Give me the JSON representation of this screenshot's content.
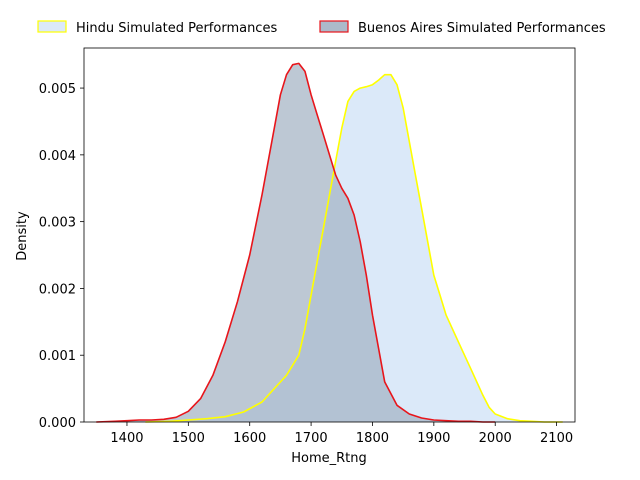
{
  "chart_data": {
    "type": "area",
    "xlabel": "Home_Rtng",
    "ylabel": "Density",
    "xlim": [
      1330,
      2130
    ],
    "ylim": [
      0,
      0.0056
    ],
    "xticks": [
      1400,
      1500,
      1600,
      1700,
      1800,
      1900,
      2000,
      2100
    ],
    "xtick_labels": [
      "1400",
      "1500",
      "1600",
      "1700",
      "1800",
      "1900",
      "2000",
      "2100"
    ],
    "yticks": [
      0,
      0.001,
      0.002,
      0.003,
      0.004,
      0.005
    ],
    "ytick_labels": [
      "0.000",
      "0.001",
      "0.002",
      "0.003",
      "0.004",
      "0.005"
    ],
    "grid": false,
    "legend_position": "top, outside plot",
    "series": [
      {
        "name": "Hindu Simulated Performances",
        "fill": "#dbe9f9",
        "line": "#ffff00",
        "x": [
          1430,
          1470,
          1500,
          1530,
          1560,
          1590,
          1620,
          1640,
          1660,
          1680,
          1690,
          1700,
          1710,
          1720,
          1730,
          1740,
          1750,
          1760,
          1770,
          1780,
          1790,
          1800,
          1810,
          1820,
          1830,
          1840,
          1850,
          1860,
          1870,
          1880,
          1890,
          1900,
          1910,
          1920,
          1940,
          1960,
          1980,
          1990,
          2000,
          2020,
          2040,
          2060,
          2080,
          2100,
          2110
        ],
        "y": [
          0.0,
          1e-05,
          3e-05,
          5e-05,
          8e-05,
          0.00015,
          0.0003,
          0.0005,
          0.0007,
          0.001,
          0.0014,
          0.0019,
          0.0024,
          0.0029,
          0.0034,
          0.0039,
          0.0044,
          0.0048,
          0.00495,
          0.005,
          0.00502,
          0.00505,
          0.00512,
          0.0052,
          0.0052,
          0.00505,
          0.0047,
          0.0042,
          0.0037,
          0.0032,
          0.0027,
          0.0022,
          0.0019,
          0.0016,
          0.0012,
          0.0008,
          0.0004,
          0.00022,
          0.00012,
          5e-05,
          2e-05,
          1e-05,
          0.0,
          0.0,
          0.0
        ]
      },
      {
        "name": "Buenos Aires Simulated Performances",
        "fill": "#a3b3c4",
        "line": "#e8151b",
        "x": [
          1350,
          1380,
          1400,
          1420,
          1440,
          1460,
          1480,
          1500,
          1520,
          1540,
          1560,
          1580,
          1600,
          1620,
          1640,
          1650,
          1660,
          1670,
          1680,
          1690,
          1700,
          1710,
          1720,
          1730,
          1740,
          1750,
          1760,
          1770,
          1780,
          1790,
          1800,
          1810,
          1820,
          1840,
          1860,
          1880,
          1900,
          1920,
          1940,
          1960,
          1980,
          2000
        ],
        "y": [
          0.0,
          1e-05,
          2e-05,
          3e-05,
          3e-05,
          4e-05,
          7e-05,
          0.00016,
          0.00035,
          0.0007,
          0.0012,
          0.0018,
          0.0025,
          0.0034,
          0.0044,
          0.0049,
          0.0052,
          0.00535,
          0.00537,
          0.00525,
          0.0049,
          0.0046,
          0.0043,
          0.004,
          0.0037,
          0.0035,
          0.00335,
          0.0031,
          0.0027,
          0.0022,
          0.0016,
          0.0011,
          0.0006,
          0.00025,
          0.00012,
          6e-05,
          3e-05,
          2e-05,
          1e-05,
          1e-05,
          0.0,
          0.0
        ]
      }
    ]
  }
}
